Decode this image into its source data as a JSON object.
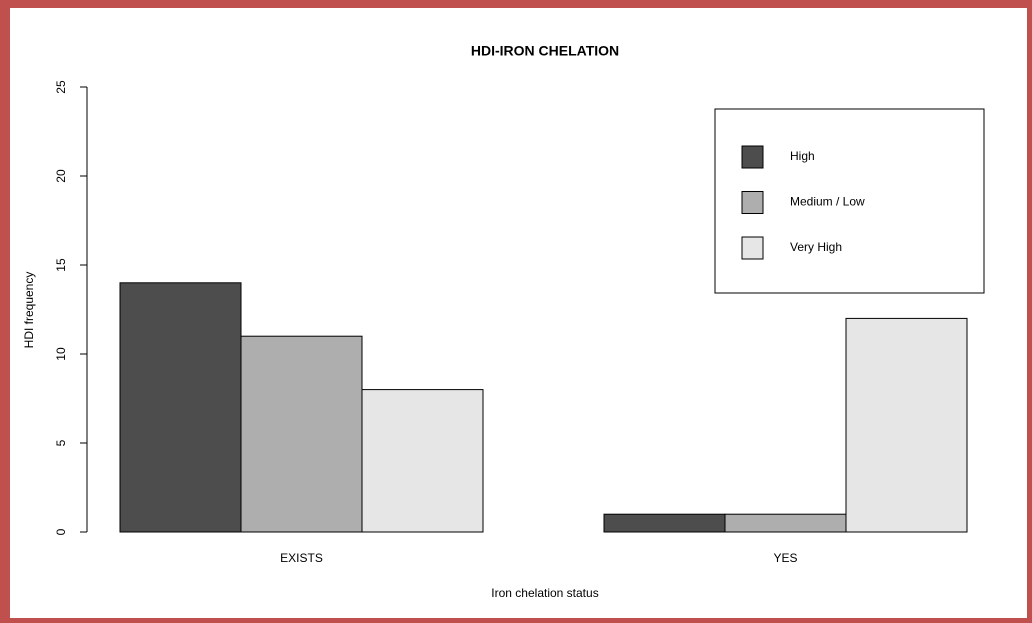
{
  "chart_data": {
    "type": "bar",
    "title": "HDI-IRON CHELATION",
    "x_label": "Iron chelation status",
    "y_label": "HDI frequency",
    "categories": [
      "EXISTS",
      "YES"
    ],
    "series": [
      {
        "name": "High",
        "color": "#4d4d4d",
        "values": [
          14,
          1
        ]
      },
      {
        "name": "Medium / Low",
        "color": "#aeaeae",
        "values": [
          11,
          1
        ]
      },
      {
        "name": "Very High",
        "color": "#e6e6e6",
        "values": [
          8,
          12
        ]
      }
    ],
    "ylim": [
      0,
      25
    ],
    "yticks": [
      0,
      5,
      10,
      15,
      20,
      25
    ],
    "legend": "top-right"
  }
}
